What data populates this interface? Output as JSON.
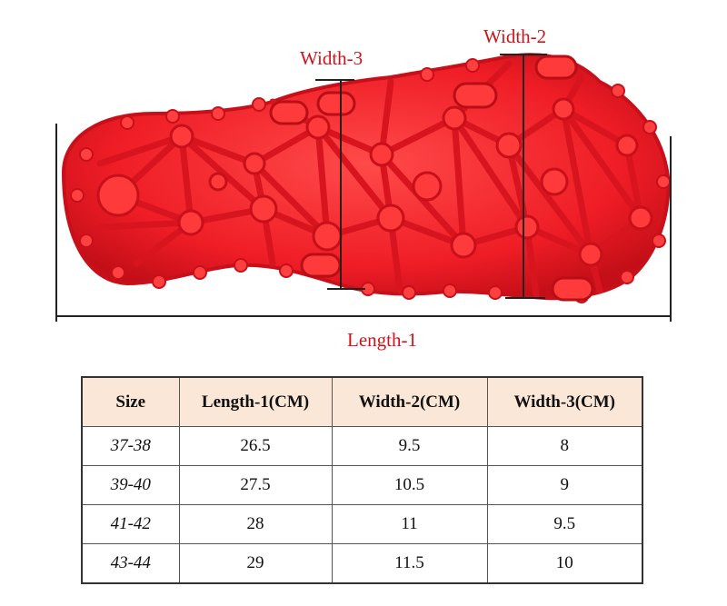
{
  "colors": {
    "label_red": "#d0131b",
    "sole_red": "#f2202a",
    "sole_dark": "#c8101a",
    "header_bg": "#fbe7d8",
    "row_bg": "#ffffff"
  },
  "diagram": {
    "labels": {
      "width_3": "Width-3",
      "width_2": "Width-2",
      "length_1": "Length-1"
    }
  },
  "table": {
    "headers": [
      "Size",
      "Length-1(CM)",
      "Width-2(CM)",
      "Width-3(CM)"
    ],
    "rows": [
      [
        "37-38",
        "26.5",
        "9.5",
        "8"
      ],
      [
        "39-40",
        "27.5",
        "10.5",
        "9"
      ],
      [
        "41-42",
        "28",
        "11",
        "9.5"
      ],
      [
        "43-44",
        "29",
        "11.5",
        "10"
      ]
    ]
  }
}
